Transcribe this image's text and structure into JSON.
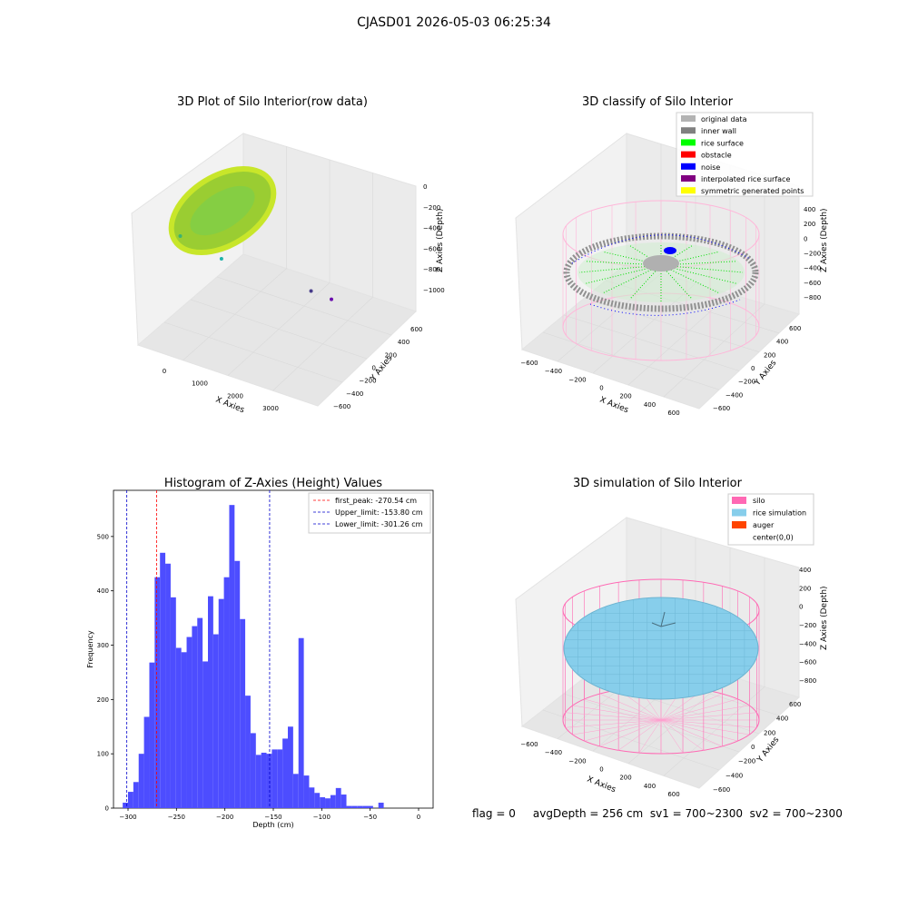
{
  "figure": {
    "title": "CJASD01 2026-05-03 06:25:34",
    "bottom_note": "flag = 0     avgDepth = 256 cm  sv1 = 700~2300  sv2 = 700~2300"
  },
  "colors": {
    "panel": "#f2f2f2",
    "grid": "#dddddd",
    "hist_bar": "#4d4dff",
    "first_peak": "#ff0000",
    "limit": "#0000cc",
    "silo": "#ff69b4",
    "rice_sim": "#87ceeb",
    "auger": "#ff4500",
    "original": "#b3b3b3",
    "inner_wall": "#808080",
    "rice_surface": "#00ff00",
    "obstacle": "#ff0000",
    "noise": "#0000ff",
    "interp": "#800080",
    "symmetric": "#ffff00"
  },
  "chart_data": [
    {
      "type": "scatter",
      "title": "3D Plot of Silo Interior(row data)",
      "xlabel": "X Axies",
      "ylabel": "Y Axies",
      "zlabel": "Z Axies (Depth)",
      "x_ticks": [
        "0",
        "1000",
        "2000",
        "3000"
      ],
      "y_ticks": [
        "600",
        "400",
        "200",
        "0",
        "−200",
        "−400",
        "−600"
      ],
      "z_ticks": [
        "0",
        "−200",
        "−400",
        "−600",
        "−800",
        "−1000"
      ],
      "outliers": [
        {
          "x": 330,
          "y": 0,
          "z": -600
        },
        {
          "x": 1140,
          "y": 0,
          "z": -780
        },
        {
          "x": 2900,
          "y": 0,
          "z": -950
        },
        {
          "x": 3300,
          "y": 0,
          "z": -1000
        }
      ]
    },
    {
      "type": "scatter",
      "title": "3D classify of Silo Interior",
      "xlabel": "X Axies",
      "ylabel": "Y Axies",
      "zlabel": "Z Axies (Depth)",
      "x_ticks": [
        "−600",
        "−400",
        "−200",
        "0",
        "200",
        "400",
        "600"
      ],
      "y_ticks": [
        "600",
        "400",
        "200",
        "0",
        "−200",
        "−400",
        "−600"
      ],
      "z_ticks": [
        "400",
        "200",
        "0",
        "−200",
        "−400",
        "−600",
        "−800"
      ],
      "legend": [
        "original data",
        "inner wall",
        "rice surface",
        "obstacle",
        "noise",
        "interpolated rice surface",
        "symmetric generated points"
      ],
      "legend_position": "top-right"
    },
    {
      "type": "bar",
      "title": "Histogram of Z-Axies (Height) Values",
      "xlabel": "Depth (cm)",
      "ylabel": "Frequency",
      "xlim": [
        -315,
        15
      ],
      "ylim": [
        0,
        585
      ],
      "x_ticks": [
        -300,
        -250,
        -200,
        -150,
        -100,
        -50,
        0
      ],
      "x_tick_labels": [
        "−300",
        "−250",
        "−200",
        "−150",
        "−100",
        "−50",
        "0"
      ],
      "y_ticks": [
        0,
        100,
        200,
        300,
        400,
        500
      ],
      "bin_start": -305.5,
      "bin_width": 5.5,
      "values": [
        10,
        30,
        48,
        100,
        168,
        268,
        425,
        470,
        450,
        388,
        295,
        287,
        315,
        335,
        350,
        270,
        390,
        320,
        385,
        425,
        558,
        455,
        348,
        207,
        138,
        98,
        102,
        100,
        108,
        108,
        128,
        150,
        63,
        313,
        60,
        38,
        28,
        20,
        18,
        24,
        37,
        25,
        4,
        4,
        4,
        4,
        4,
        0,
        10
      ],
      "legend": [
        {
          "label": "first_peak: -270.54 cm",
          "value": -270.54,
          "style": "first_peak"
        },
        {
          "label": "Upper_limit: -153.80 cm",
          "value": -153.8,
          "style": "limit"
        },
        {
          "label": "Lower_limit: -301.26 cm",
          "value": -301.26,
          "style": "limit"
        }
      ],
      "legend_position": "top-right"
    },
    {
      "type": "scatter",
      "title": "3D simulation of Silo Interior",
      "xlabel": "X Axies",
      "ylabel": "Y Axies",
      "zlabel": "Z Axies (Depth)",
      "x_ticks": [
        "−600",
        "−400",
        "−200",
        "0",
        "200",
        "400",
        "600"
      ],
      "y_ticks": [
        "600",
        "400",
        "200",
        "0",
        "−200",
        "−400",
        "−600"
      ],
      "z_ticks": [
        "400",
        "200",
        "0",
        "−200",
        "−400",
        "−600",
        "−800"
      ],
      "legend": [
        "silo",
        "rice simulation",
        "auger",
        "center(0,0)"
      ],
      "legend_position": "top-right"
    }
  ]
}
